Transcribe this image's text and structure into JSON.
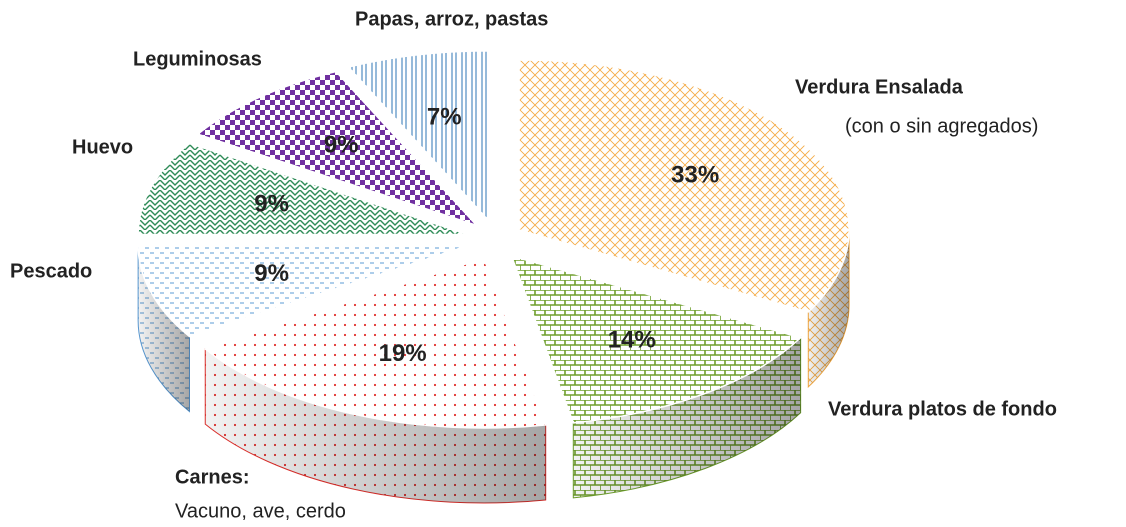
{
  "chart_data": {
    "type": "pie3d",
    "categories": [
      "Verdura Ensalada",
      "Verdura platos de fondo",
      "Carnes:",
      "Pescado",
      "Huevo",
      "Leguminosas",
      "Papas, arroz, pastas"
    ],
    "category_details": [
      "(con o sin agregados)",
      null,
      "Vacuno, ave, cerdo",
      null,
      null,
      null,
      null
    ],
    "values": [
      33,
      14,
      19,
      9,
      9,
      9,
      7
    ],
    "value_labels": [
      "33%",
      "14%",
      "19%",
      "9%",
      "9%",
      "9%",
      "7%"
    ],
    "colors": [
      "#f4a940",
      "#6e9e2c",
      "#e0302c",
      "#5b9bd5",
      "#2e8b57",
      "#7030a0",
      "#2e75b6"
    ]
  }
}
